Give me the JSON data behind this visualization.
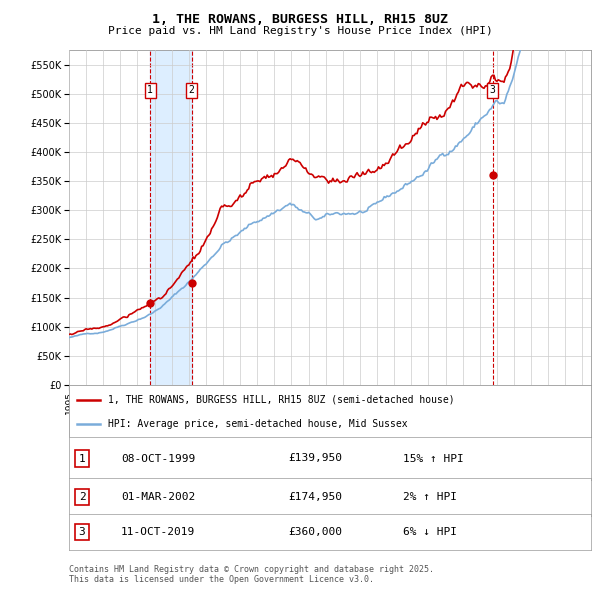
{
  "title": "1, THE ROWANS, BURGESS HILL, RH15 8UZ",
  "subtitle": "Price paid vs. HM Land Registry's House Price Index (HPI)",
  "legend_line1": "1, THE ROWANS, BURGESS HILL, RH15 8UZ (semi-detached house)",
  "legend_line2": "HPI: Average price, semi-detached house, Mid Sussex",
  "sale1_date": "08-OCT-1999",
  "sale1_price": 139950,
  "sale1_label": "15% ↑ HPI",
  "sale2_date": "01-MAR-2002",
  "sale2_price": 174950,
  "sale2_label": "2% ↑ HPI",
  "sale3_date": "11-OCT-2019",
  "sale3_price": 360000,
  "sale3_label": "6% ↓ HPI",
  "footer": "Contains HM Land Registry data © Crown copyright and database right 2025.\nThis data is licensed under the Open Government Licence v3.0.",
  "hpi_color": "#7aacda",
  "price_color": "#cc0000",
  "dot_color": "#cc0000",
  "vline_color": "#cc0000",
  "shade_color": "#ddeeff",
  "grid_color": "#cccccc",
  "bg_color": "#ffffff",
  "ylim": [
    0,
    575000
  ],
  "ytick_step": 50000,
  "start_year": 1995.0,
  "end_year": 2025.5
}
